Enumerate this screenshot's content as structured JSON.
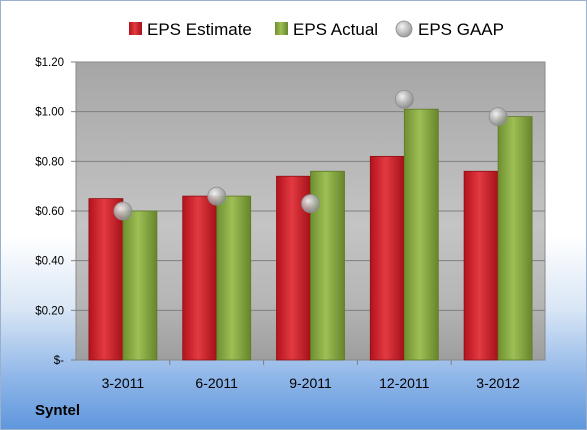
{
  "company": "Syntel",
  "chart_data": {
    "type": "bar",
    "categories": [
      "3-2011",
      "6-2011",
      "9-2011",
      "12-2011",
      "3-2012"
    ],
    "series": [
      {
        "name": "EPS Estimate",
        "marker": "bar",
        "color": "#d0202a",
        "values": [
          0.65,
          0.66,
          0.74,
          0.82,
          0.76
        ]
      },
      {
        "name": "EPS Actual",
        "marker": "bar",
        "color": "#8fb04a",
        "values": [
          0.6,
          0.66,
          0.76,
          1.01,
          0.98
        ]
      },
      {
        "name": "EPS GAAP",
        "marker": "circle",
        "color": "#a8a8a8",
        "values": [
          0.6,
          0.66,
          0.63,
          1.05,
          0.98
        ]
      }
    ],
    "yticks": [
      {
        "value": 0,
        "label": "$-"
      },
      {
        "value": 0.2,
        "label": "$0.20"
      },
      {
        "value": 0.4,
        "label": "$0.40"
      },
      {
        "value": 0.6,
        "label": "$0.60"
      },
      {
        "value": 0.8,
        "label": "$0.80"
      },
      {
        "value": 1.0,
        "label": "$1.00"
      },
      {
        "value": 1.2,
        "label": "$1.20"
      }
    ],
    "ylim": [
      0,
      1.2
    ],
    "grid": true,
    "legend_position": "top"
  }
}
